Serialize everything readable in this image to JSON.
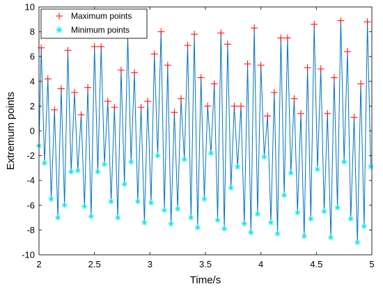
{
  "chart_data": {
    "type": "line",
    "title": "",
    "xlabel": "Time/s",
    "ylabel": "Extremum points",
    "xlim": [
      2,
      5
    ],
    "ylim": [
      -10,
      10
    ],
    "xticks": [
      2,
      2.5,
      3,
      3.5,
      4,
      4.5,
      5
    ],
    "yticks": [
      -10,
      -8,
      -6,
      -4,
      -2,
      0,
      2,
      4,
      6,
      8,
      10
    ],
    "grid": false,
    "legend_position": "top-left",
    "colors": {
      "signal": "#0072bd",
      "maximum": "#ff0000",
      "minimum": "#00e5e5"
    },
    "series": [
      {
        "name": "Maximum points",
        "marker": "plus",
        "color": "#ff0000",
        "x": [
          2.02,
          2.08,
          2.14,
          2.2,
          2.26,
          2.32,
          2.38,
          2.44,
          2.5,
          2.56,
          2.62,
          2.68,
          2.74,
          2.8,
          2.86,
          2.92,
          2.98,
          3.04,
          3.1,
          3.16,
          3.22,
          3.28,
          3.34,
          3.4,
          3.46,
          3.52,
          3.58,
          3.64,
          3.7,
          3.76,
          3.82,
          3.88,
          3.94,
          4,
          4.06,
          4.12,
          4.18,
          4.24,
          4.3,
          4.36,
          4.42,
          4.48,
          4.54,
          4.6,
          4.66,
          4.72,
          4.78,
          4.84,
          4.9,
          4.96
        ],
        "y": [
          6.7,
          4.2,
          1.7,
          3.4,
          6.5,
          3.1,
          1.3,
          3.5,
          6.8,
          6.8,
          2.4,
          1.9,
          4.9,
          7.6,
          4.7,
          1.9,
          2.4,
          6.2,
          8.0,
          5.3,
          1.5,
          2.6,
          6.9,
          7.8,
          4.3,
          2.0,
          3.8,
          7.9,
          7.0,
          2.0,
          2.0,
          5.4,
          8.3,
          5.3,
          1.2,
          3.1,
          7.5,
          7.5,
          2.6,
          1.4,
          5.1,
          8.6,
          5.0,
          1.4,
          4.3,
          8.9,
          6.4,
          1.1,
          3.8,
          8.8
        ]
      },
      {
        "name": "Minimum points",
        "marker": "asterisk",
        "color": "#00e5e5",
        "x": [
          2.0,
          2.05,
          2.11,
          2.17,
          2.23,
          2.29,
          2.35,
          2.41,
          2.47,
          2.53,
          2.59,
          2.65,
          2.71,
          2.77,
          2.83,
          2.89,
          2.95,
          3.01,
          3.07,
          3.13,
          3.19,
          3.25,
          3.31,
          3.37,
          3.43,
          3.49,
          3.55,
          3.61,
          3.67,
          3.73,
          3.79,
          3.85,
          3.91,
          3.97,
          4.03,
          4.09,
          4.15,
          4.21,
          4.27,
          4.33,
          4.39,
          4.45,
          4.51,
          4.57,
          4.63,
          4.69,
          4.75,
          4.81,
          4.87,
          4.93,
          4.99
        ],
        "y": [
          -1.2,
          -2.6,
          -5.5,
          -7.0,
          -6.0,
          -3.3,
          -3.2,
          -6.1,
          -6.9,
          -3.3,
          -2.7,
          -5.7,
          -7.0,
          -4.3,
          -2.5,
          -5.7,
          -7.4,
          -5.8,
          -2.0,
          -6.4,
          -7.5,
          -6.3,
          -2.3,
          -7.0,
          -7.8,
          -5.5,
          -1.8,
          -7.2,
          -7.9,
          -4.6,
          -2.9,
          -7.5,
          -8.2,
          -6.7,
          -2.1,
          -7.4,
          -8.3,
          -5.2,
          -3.4,
          -6.6,
          -8.5,
          -7.1,
          -3.1,
          -6.5,
          -8.6,
          -6.2,
          -2.5,
          -7.1,
          -9.0,
          -7.7,
          -2.9
        ]
      }
    ]
  }
}
